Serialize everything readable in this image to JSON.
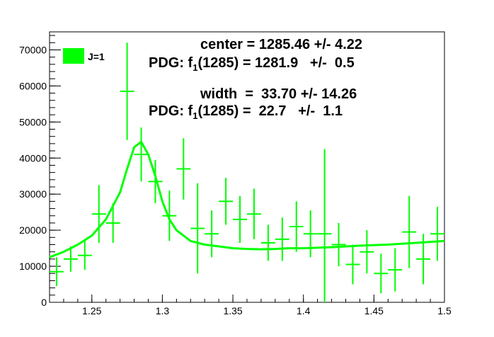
{
  "chart_data": {
    "type": "scatter",
    "xlim": [
      1.22,
      1.5
    ],
    "ylim": [
      0,
      75000
    ],
    "x_ticks": [
      "1.25",
      "1.3",
      "1.35",
      "1.4",
      "1.45",
      "1.5"
    ],
    "y_ticks": [
      "0",
      "10000",
      "20000",
      "30000",
      "40000",
      "50000",
      "60000",
      "70000"
    ],
    "legend": {
      "label": "J=1",
      "placement": "top-left"
    },
    "color": "#00ff00",
    "points": [
      {
        "x": 1.225,
        "y": 8500,
        "err": 4000
      },
      {
        "x": 1.235,
        "y": 12000,
        "err": 3500
      },
      {
        "x": 1.245,
        "y": 13000,
        "err": 4000
      },
      {
        "x": 1.255,
        "y": 24500,
        "err": 8000
      },
      {
        "x": 1.265,
        "y": 22000,
        "err": 5500
      },
      {
        "x": 1.275,
        "y": 58500,
        "err": 13500
      },
      {
        "x": 1.285,
        "y": 41000,
        "err": 7500
      },
      {
        "x": 1.295,
        "y": 33500,
        "err": 6000
      },
      {
        "x": 1.305,
        "y": 24000,
        "err": 7000
      },
      {
        "x": 1.315,
        "y": 37000,
        "err": 8500
      },
      {
        "x": 1.325,
        "y": 20500,
        "err": 12500
      },
      {
        "x": 1.335,
        "y": 19000,
        "err": 6500
      },
      {
        "x": 1.345,
        "y": 28000,
        "err": 6500
      },
      {
        "x": 1.355,
        "y": 23000,
        "err": 6500
      },
      {
        "x": 1.365,
        "y": 24500,
        "err": 7000
      },
      {
        "x": 1.375,
        "y": 16500,
        "err": 5000
      },
      {
        "x": 1.385,
        "y": 17500,
        "err": 6000
      },
      {
        "x": 1.395,
        "y": 21000,
        "err": 7000
      },
      {
        "x": 1.405,
        "y": 19000,
        "err": 6500
      },
      {
        "x": 1.415,
        "y": 19000,
        "err": 23500
      },
      {
        "x": 1.425,
        "y": 16000,
        "err": 6000
      },
      {
        "x": 1.435,
        "y": 10500,
        "err": 5500
      },
      {
        "x": 1.445,
        "y": 14000,
        "err": 6000
      },
      {
        "x": 1.455,
        "y": 8000,
        "err": 5500
      },
      {
        "x": 1.465,
        "y": 9000,
        "err": 6000
      },
      {
        "x": 1.475,
        "y": 19500,
        "err": 10000
      },
      {
        "x": 1.485,
        "y": 12000,
        "err": 7000
      },
      {
        "x": 1.495,
        "y": 19000,
        "err": 7500
      }
    ],
    "fit": {
      "x": [
        1.22,
        1.23,
        1.24,
        1.25,
        1.26,
        1.27,
        1.275,
        1.28,
        1.285,
        1.29,
        1.295,
        1.3,
        1.305,
        1.31,
        1.32,
        1.33,
        1.34,
        1.35,
        1.36,
        1.37,
        1.38,
        1.39,
        1.4,
        1.42,
        1.44,
        1.46,
        1.48,
        1.5
      ],
      "y": [
        12500,
        14000,
        16000,
        18500,
        23000,
        30500,
        37000,
        43000,
        44500,
        41000,
        35000,
        28000,
        23000,
        20000,
        17000,
        16000,
        15500,
        15000,
        14800,
        14700,
        14800,
        15000,
        15000,
        15300,
        15700,
        16000,
        16500,
        17000
      ]
    }
  },
  "annotations": {
    "line1": "center = 1285.46 +/- 4.22",
    "line2_prefix": "PDG: f",
    "line2_sub": "1",
    "line2_suffix": "(1285) = 1281.9   +/-  0.5",
    "line3": "width  =  33.70 +/- 14.26",
    "line4_prefix": "PDG: f",
    "line4_sub": "1",
    "line4_suffix": "(1285) =  22.7   +/-  1.1"
  }
}
